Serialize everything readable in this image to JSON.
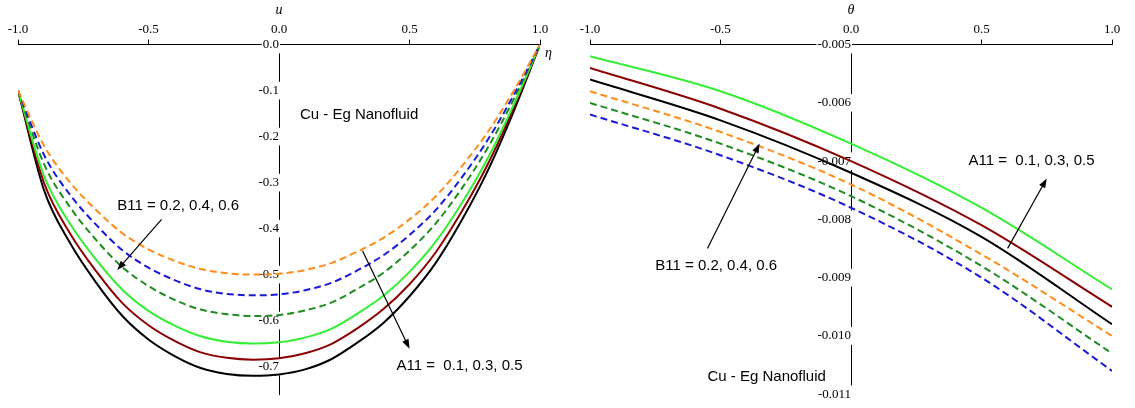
{
  "chart_data": [
    {
      "type": "line",
      "x_label": "η",
      "y_label": "u",
      "grid": false,
      "x": [
        -1.0,
        -0.9,
        -0.8,
        -0.7,
        -0.6,
        -0.5,
        -0.4,
        -0.3,
        -0.2,
        -0.1,
        0.0,
        0.1,
        0.2,
        0.3,
        0.4,
        0.5,
        0.6,
        0.7,
        0.8,
        0.9,
        1.0
      ],
      "xlim": [
        -1,
        1
      ],
      "xticks": [
        {
          "value": -1,
          "label": "-1.0"
        },
        -0.5,
        {
          "value": 0,
          "label": "0.0"
        },
        0.5,
        {
          "value": 1,
          "label": "1.0"
        }
      ],
      "ylim": [
        -0.76,
        0
      ],
      "yticks": [
        {
          "value": 0,
          "label": "0.0"
        },
        -0.1,
        -0.2,
        -0.3,
        -0.4,
        -0.5,
        -0.6,
        -0.7
      ],
      "series": [
        {
          "color": "#ff8c1a",
          "line_style": "dashed",
          "values": [
            -0.1,
            -0.22,
            -0.3,
            -0.36,
            -0.41,
            -0.445,
            -0.47,
            -0.488,
            -0.497,
            -0.5,
            -0.498,
            -0.49,
            -0.475,
            -0.45,
            -0.42,
            -0.38,
            -0.33,
            -0.265,
            -0.19,
            -0.1,
            0.0
          ]
        },
        {
          "color": "#1a1ad6",
          "line_style": "dashed",
          "values": [
            -0.1,
            -0.24,
            -0.327,
            -0.392,
            -0.447,
            -0.485,
            -0.512,
            -0.532,
            -0.542,
            -0.545,
            -0.543,
            -0.534,
            -0.518,
            -0.491,
            -0.458,
            -0.414,
            -0.36,
            -0.289,
            -0.207,
            -0.109,
            0.0
          ]
        },
        {
          "color": "#1e8c1e",
          "line_style": "dashed",
          "values": [
            -0.1,
            -0.26,
            -0.354,
            -0.425,
            -0.484,
            -0.525,
            -0.555,
            -0.576,
            -0.586,
            -0.59,
            -0.588,
            -0.578,
            -0.561,
            -0.531,
            -0.496,
            -0.448,
            -0.389,
            -0.313,
            -0.224,
            -0.118,
            0.0
          ]
        },
        {
          "color": "#33ee33",
          "line_style": "solid",
          "values": [
            -0.1,
            -0.286,
            -0.39,
            -0.468,
            -0.533,
            -0.579,
            -0.611,
            -0.634,
            -0.646,
            -0.65,
            -0.647,
            -0.637,
            -0.618,
            -0.585,
            -0.546,
            -0.494,
            -0.429,
            -0.345,
            -0.247,
            -0.13,
            0.0
          ]
        },
        {
          "color": "#8b0000",
          "line_style": "solid",
          "values": [
            -0.1,
            -0.301,
            -0.411,
            -0.493,
            -0.562,
            -0.61,
            -0.644,
            -0.669,
            -0.681,
            -0.685,
            -0.682,
            -0.671,
            -0.651,
            -0.617,
            -0.575,
            -0.521,
            -0.452,
            -0.363,
            -0.26,
            -0.137,
            0.0
          ]
        },
        {
          "color": "#000000",
          "line_style": "solid",
          "values": [
            -0.1,
            -0.317,
            -0.432,
            -0.518,
            -0.59,
            -0.641,
            -0.677,
            -0.703,
            -0.716,
            -0.72,
            -0.717,
            -0.706,
            -0.684,
            -0.648,
            -0.605,
            -0.547,
            -0.475,
            -0.382,
            -0.274,
            -0.144,
            0.0
          ]
        }
      ],
      "annotations": [
        "Cu - Eg Nanofluid",
        "B11 = 0.2, 0.4, 0.6",
        "A11 =  0.1, 0.3, 0.5"
      ]
    },
    {
      "type": "line",
      "y_label": "θ",
      "grid": false,
      "x": [
        -1.0,
        -0.5,
        0.0,
        0.5,
        1.0
      ],
      "xlim": [
        -1,
        1
      ],
      "xticks": [
        {
          "value": -1,
          "label": "-1.0"
        },
        -0.5,
        {
          "value": 0,
          "label": "0.0"
        },
        0.5,
        {
          "value": 1,
          "label": "1.0"
        }
      ],
      "ylim": [
        -0.011,
        -0.005
      ],
      "yticks": [
        -0.005,
        -0.006,
        -0.007,
        -0.008,
        -0.009,
        {
          "value": -0.01,
          "label": "-0.010"
        },
        -0.011
      ],
      "series": [
        {
          "color": "#33ee33",
          "line_style": "solid",
          "values": [
            -0.0052,
            -0.0058,
            -0.0067,
            -0.0078,
            -0.0092
          ]
        },
        {
          "color": "#8b0000",
          "line_style": "solid",
          "values": [
            -0.0054,
            -0.0061,
            -0.007,
            -0.0081,
            -0.0095
          ]
        },
        {
          "color": "#000000",
          "line_style": "solid",
          "values": [
            -0.0056,
            -0.0063,
            -0.0072,
            -0.0083,
            -0.0098
          ]
        },
        {
          "color": "#ff8c1a",
          "line_style": "dashed",
          "values": [
            -0.0058,
            -0.0065,
            -0.0074,
            -0.0086,
            -0.01
          ]
        },
        {
          "color": "#1e8c1e",
          "line_style": "dashed",
          "values": [
            -0.006,
            -0.0067,
            -0.0076,
            -0.0088,
            -0.0103
          ]
        },
        {
          "color": "#1a1ad6",
          "line_style": "dashed",
          "values": [
            -0.0062,
            -0.0069,
            -0.0078,
            -0.009,
            -0.0106
          ]
        }
      ],
      "annotations": [
        "A11 =  0.1, 0.3, 0.5",
        "B11 = 0.2, 0.4, 0.6",
        "Cu - Eg Nanofluid"
      ]
    }
  ]
}
